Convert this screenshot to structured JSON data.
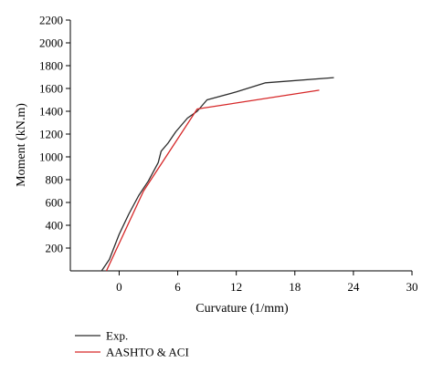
{
  "chart_data": {
    "type": "line",
    "title": "",
    "xlabel": "Curvature (1/mm)",
    "ylabel": "Moment (kN.m)",
    "xlim": [
      -5,
      30
    ],
    "ylim": [
      0,
      2200
    ],
    "xticks": [
      0,
      6,
      12,
      18,
      24,
      30
    ],
    "yticks": [
      200,
      400,
      600,
      800,
      1000,
      1200,
      1400,
      1600,
      1800,
      2000,
      2200
    ],
    "grid": false,
    "legend_position": "bottom-left",
    "series": [
      {
        "name": "Exp.",
        "color": "#2b2b2b",
        "points": [
          [
            -1.8,
            0
          ],
          [
            -1.0,
            100
          ],
          [
            0.0,
            320
          ],
          [
            1.0,
            500
          ],
          [
            2.0,
            660
          ],
          [
            3.0,
            790
          ],
          [
            4.0,
            950
          ],
          [
            4.3,
            1050
          ],
          [
            5.0,
            1120
          ],
          [
            5.8,
            1220
          ],
          [
            7.0,
            1340
          ],
          [
            8.0,
            1400
          ],
          [
            9.0,
            1500
          ],
          [
            12.0,
            1570
          ],
          [
            15.0,
            1650
          ],
          [
            22.0,
            1695
          ]
        ]
      },
      {
        "name": "AASHTO & ACI",
        "color": "#d62728",
        "points": [
          [
            -1.3,
            0
          ],
          [
            2.5,
            700
          ],
          [
            8.0,
            1420
          ],
          [
            20.5,
            1585
          ]
        ]
      }
    ]
  }
}
